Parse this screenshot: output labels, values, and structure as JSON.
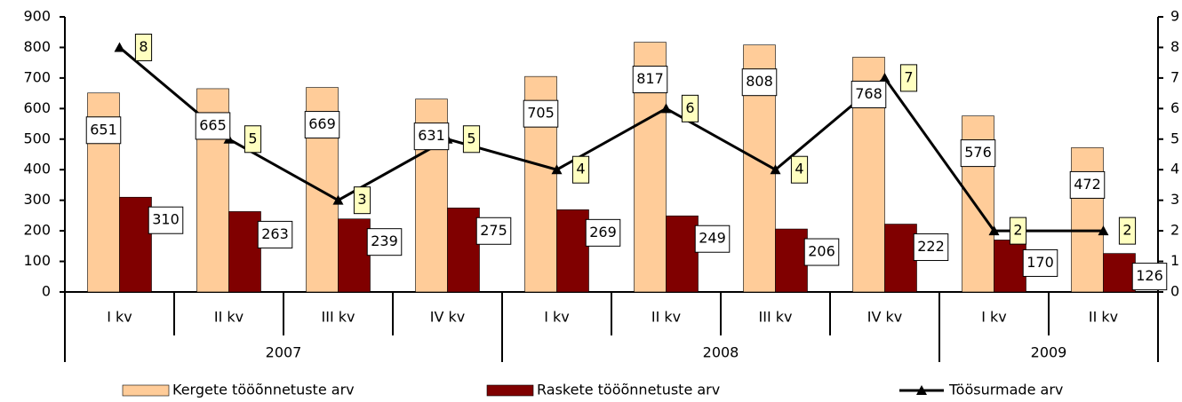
{
  "chart_data": {
    "type": "bar-line",
    "categories": [
      "I kv",
      "II kv",
      "III kv",
      "IV kv",
      "I kv",
      "II kv",
      "III kv",
      "IV kv",
      "I kv",
      "II kv"
    ],
    "category_groups": [
      {
        "name": "2007",
        "span": 4
      },
      {
        "name": "2008",
        "span": 4
      },
      {
        "name": "2009",
        "span": 2
      }
    ],
    "series": [
      {
        "name": "Kergete tööõnnetuste arv",
        "color": "#ffcc99",
        "type": "bar",
        "values": [
          651,
          665,
          669,
          631,
          705,
          817,
          808,
          768,
          576,
          472
        ]
      },
      {
        "name": "Raskete tööõnnetuste arv",
        "color": "#800000",
        "type": "bar",
        "values": [
          310,
          263,
          239,
          275,
          269,
          249,
          206,
          222,
          170,
          126
        ]
      },
      {
        "name": "Töösurmade arv",
        "color": "#000000",
        "type": "line",
        "axis": "y2",
        "values": [
          8,
          5,
          3,
          5,
          4,
          6,
          4,
          7,
          2,
          2
        ]
      }
    ],
    "ylim": [
      0,
      900
    ],
    "yticks": [
      0,
      100,
      200,
      300,
      400,
      500,
      600,
      700,
      800,
      900
    ],
    "y2lim": [
      0,
      9
    ],
    "y2ticks": [
      0,
      1,
      2,
      3,
      4,
      5,
      6,
      7,
      8,
      9
    ],
    "grid": false
  }
}
